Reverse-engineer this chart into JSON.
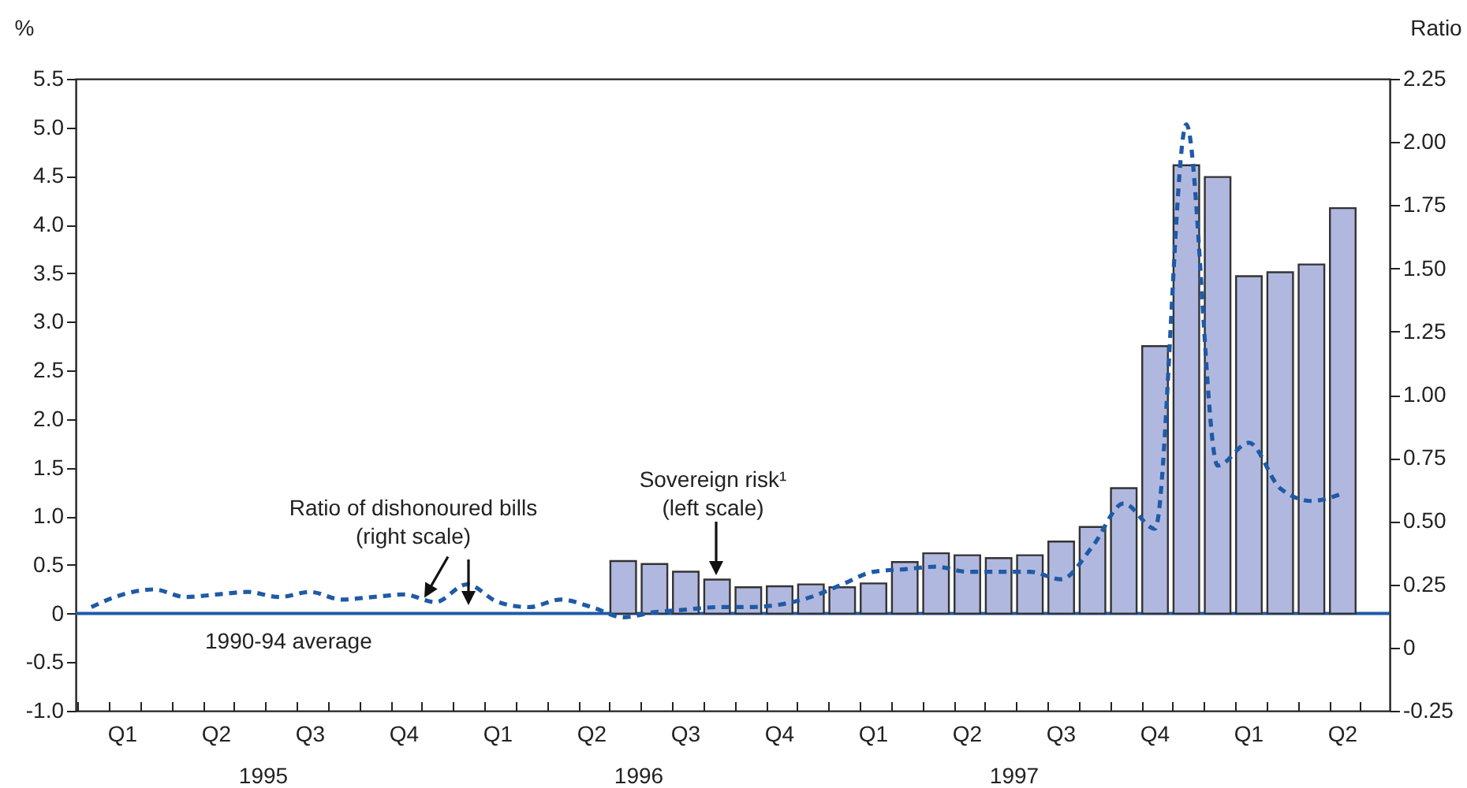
{
  "chart_data": {
    "type": "bar",
    "ylabel": "%",
    "y2label": "Ratio",
    "annotations": [
      "Ratio of dishonoured bills\n(right scale)",
      "Sovereign risk¹\n(left scale)",
      "1995",
      "1996",
      "1997"
    ],
    "categories": [
      null,
      "Q1",
      null,
      null,
      "Q2",
      null,
      null,
      "Q3",
      null,
      null,
      "Q4",
      null,
      null,
      "Q1",
      null,
      null,
      "Q2",
      null,
      null,
      "Q3",
      null,
      null,
      "Q4",
      null,
      null,
      "Q1",
      null,
      null,
      "Q2",
      null,
      null,
      "Q3",
      null,
      null,
      "Q4",
      null,
      null,
      "Q1",
      null,
      null,
      "Q2",
      null
    ],
    "ylim": [
      -1,
      5.5
    ],
    "yticks": [
      {
        "value": -1,
        "label": "-1.0"
      },
      -0.5,
      0,
      0.5,
      {
        "value": 1,
        "label": "1.0"
      },
      1.5,
      {
        "value": 2,
        "label": "2.0"
      },
      2.5,
      {
        "value": 3,
        "label": "3.0"
      },
      3.5,
      {
        "value": 4,
        "label": "4.0"
      },
      4.5,
      {
        "value": 5,
        "label": "5.0"
      },
      5.5
    ],
    "y2lim": [
      -0.25,
      2.25
    ],
    "y2ticks": [
      -0.25,
      0,
      0.25,
      {
        "value": 0.5,
        "label": "0.50"
      },
      0.75,
      {
        "value": 1,
        "label": "1.00"
      },
      1.25,
      {
        "value": 1.5,
        "label": "1.50"
      },
      1.75,
      {
        "value": 2,
        "label": "2.00"
      },
      2.25
    ],
    "ref_lines": [
      {
        "axis": "y",
        "value": 0,
        "label": "1990-94 average",
        "color": "#1f5aa6",
        "line_style": "solid"
      }
    ],
    "series": [
      {
        "color": "#b1b8df",
        "values": [
          null,
          null,
          null,
          null,
          null,
          null,
          null,
          null,
          null,
          null,
          null,
          null,
          null,
          null,
          null,
          null,
          null,
          0.54,
          0.51,
          0.43,
          0.35,
          0.27,
          0.28,
          0.3,
          0.27,
          0.31,
          0.53,
          0.62,
          0.6,
          0.57,
          0.6,
          0.74,
          0.89,
          1.29,
          2.75,
          4.61,
          4.49,
          3.47,
          3.51,
          3.59,
          4.17,
          null
        ]
      },
      {
        "type": "line",
        "axis": "y2",
        "color": "#1f5aa6",
        "line_style": "dashed",
        "values": [
          0.16,
          0.21,
          0.23,
          0.2,
          0.21,
          0.22,
          0.2,
          0.22,
          0.19,
          0.2,
          0.21,
          0.18,
          0.25,
          0.18,
          0.16,
          0.19,
          0.16,
          0.12,
          0.14,
          0.15,
          0.16,
          0.16,
          0.17,
          0.2,
          0.25,
          0.3,
          0.31,
          0.32,
          0.3,
          0.3,
          0.3,
          0.27,
          0.4,
          0.57,
          0.47,
          2.07,
          0.72,
          0.81,
          0.63,
          0.58,
          0.61,
          null
        ]
      }
    ]
  }
}
